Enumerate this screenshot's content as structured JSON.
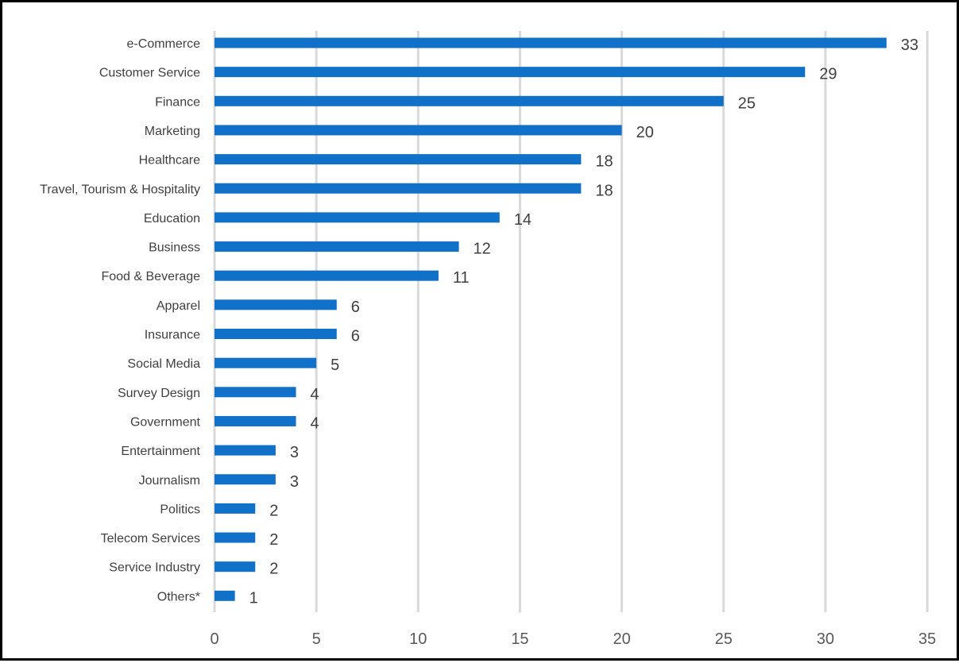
{
  "chart_data": {
    "type": "bar",
    "orientation": "horizontal",
    "title": "",
    "xlabel": "",
    "ylabel": "",
    "categories": [
      "e-Commerce",
      "Customer Service",
      "Finance",
      "Marketing",
      "Healthcare",
      "Travel, Tourism & Hospitality",
      "Education",
      "Business",
      "Food & Beverage",
      "Apparel",
      "Insurance",
      "Social Media",
      "Survey Design",
      "Government",
      "Entertainment",
      "Journalism",
      "Politics",
      "Telecom Services",
      "Service Industry",
      "Others*"
    ],
    "values": [
      33,
      29,
      25,
      20,
      18,
      18,
      14,
      12,
      11,
      6,
      6,
      5,
      4,
      4,
      3,
      3,
      2,
      2,
      2,
      1
    ],
    "xlim": [
      0,
      35
    ],
    "xticks": [
      0,
      5,
      10,
      15,
      20,
      25,
      30,
      35
    ],
    "grid": true,
    "legend": "none",
    "data_labels": true,
    "colors": {
      "bar": "#1170C8",
      "grid": "#D9D9D9",
      "text": "#404040",
      "frame": "#000000"
    }
  }
}
